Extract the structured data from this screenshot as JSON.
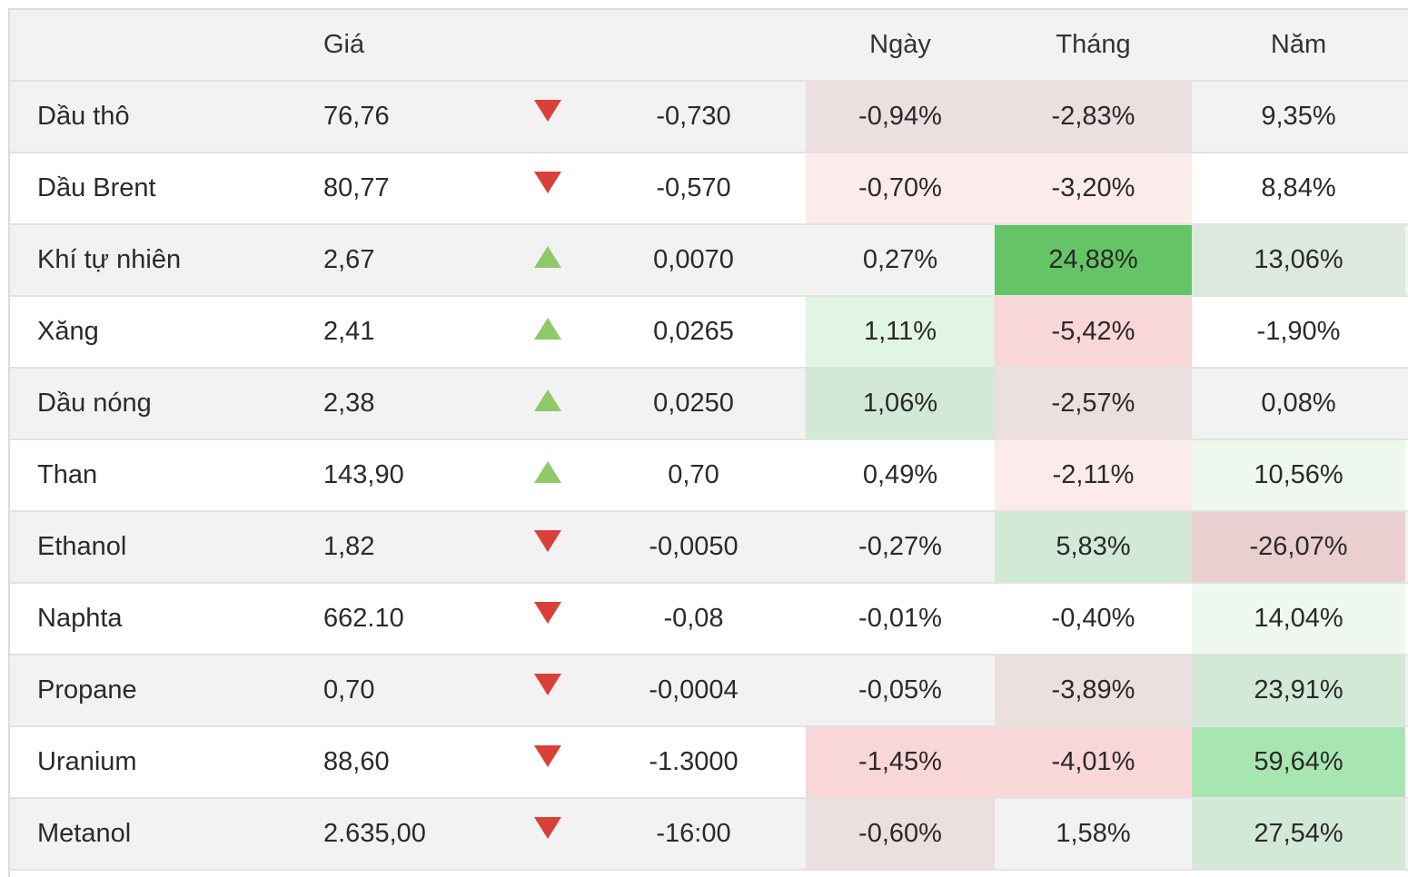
{
  "header": {
    "name": "",
    "price": "Giá",
    "change": "",
    "day": "Ngày",
    "month": "Tháng",
    "year": "Năm"
  },
  "colors": {
    "red_arrow": "#d9403a",
    "green_arrow": "#8fc96a"
  },
  "rows": [
    {
      "name": "Dầu thô",
      "price": "76,76",
      "dir": "down",
      "change": "-0,730",
      "day": "-0,94%",
      "month": "-2,83%",
      "year": "9,35%",
      "day_bg": "#ecdfdf",
      "month_bg": "#ecdfdf",
      "year_bg": ""
    },
    {
      "name": "Dầu Brent",
      "price": "80,77",
      "dir": "down",
      "change": "-0,570",
      "day": "-0,70%",
      "month": "-3,20%",
      "year": "8,84%",
      "day_bg": "#fcebeb",
      "month_bg": "#fcebeb",
      "year_bg": ""
    },
    {
      "name": "Khí tự nhiên",
      "price": "2,67",
      "dir": "up",
      "change": "0,0070",
      "day": "0,27%",
      "month": "24,88%",
      "year": "13,06%",
      "day_bg": "",
      "month_bg": "#65c566",
      "year_bg": "#dde9de"
    },
    {
      "name": "Xăng",
      "price": "2,41",
      "dir": "up",
      "change": "0,0265",
      "day": "1,11%",
      "month": "-5,42%",
      "year": "-1,90%",
      "day_bg": "#e0f5e2",
      "month_bg": "#f9d6d7",
      "year_bg": ""
    },
    {
      "name": "Dầu nóng",
      "price": "2,38",
      "dir": "up",
      "change": "0,0250",
      "day": "1,06%",
      "month": "-2,57%",
      "year": "0,08%",
      "day_bg": "#d3e9d8",
      "month_bg": "#ecdfdf",
      "year_bg": ""
    },
    {
      "name": "Than",
      "price": "143,90",
      "dir": "up",
      "change": "0,70",
      "day": "0,49%",
      "month": "-2,11%",
      "year": "10,56%",
      "day_bg": "",
      "month_bg": "#fcebeb",
      "year_bg": "#eef8ef"
    },
    {
      "name": "Ethanol",
      "price": "1,82",
      "dir": "down",
      "change": "-0,0050",
      "day": "-0,27%",
      "month": "5,83%",
      "year": "-26,07%",
      "day_bg": "",
      "month_bg": "#d3e9d8",
      "year_bg": "#eacfd0"
    },
    {
      "name": "Naphta",
      "price": "662.10",
      "dir": "down",
      "change": "-0,08",
      "day": "-0,01%",
      "month": "-0,40%",
      "year": "14,04%",
      "day_bg": "",
      "month_bg": "",
      "year_bg": "#eef8ef"
    },
    {
      "name": "Propane",
      "price": "0,70",
      "dir": "down",
      "change": "-0,0004",
      "day": "-0,05%",
      "month": "-3,89%",
      "year": "23,91%",
      "day_bg": "",
      "month_bg": "#ecdfdf",
      "year_bg": "#d3e9d8"
    },
    {
      "name": "Uranium",
      "price": "88,60",
      "dir": "down",
      "change": "-1.3000",
      "day": "-1,45%",
      "month": "-4,01%",
      "year": "59,64%",
      "day_bg": "#f9d6d7",
      "month_bg": "#f9d6d7",
      "year_bg": "#a8e6b1"
    },
    {
      "name": "Metanol",
      "price": "2.635,00",
      "dir": "down",
      "change": "-16:00",
      "day": "-0,60%",
      "month": "1,58%",
      "year": "27,54%",
      "day_bg": "#ecdfdf",
      "month_bg": "",
      "year_bg": "#d3e9d8"
    }
  ]
}
